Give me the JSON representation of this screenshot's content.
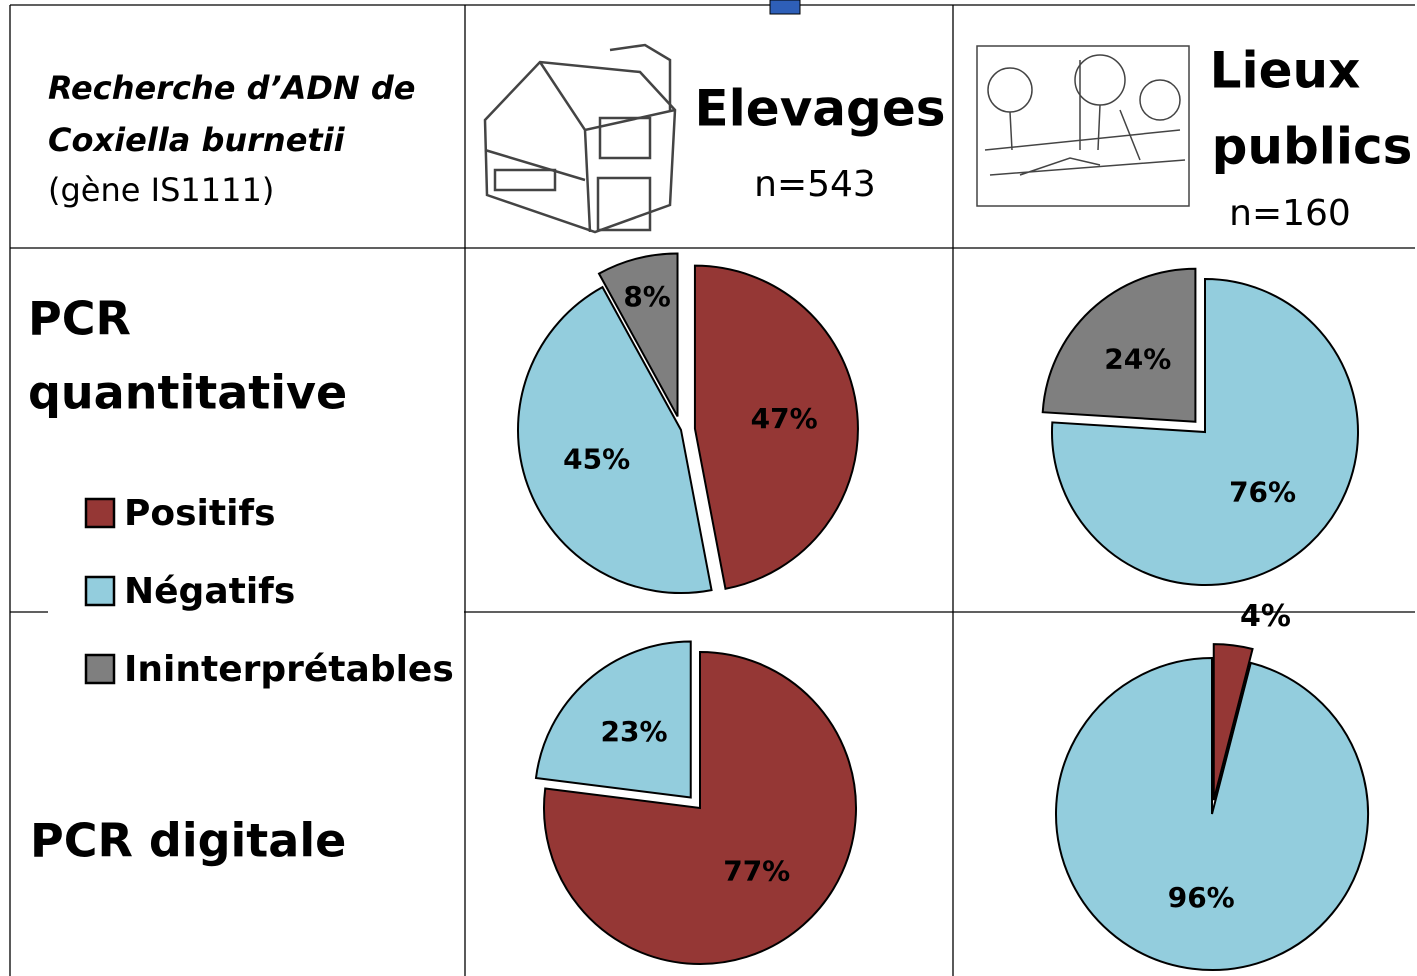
{
  "header": {
    "description": [
      "Recherche d’ADN de",
      "Coxiella burnetii",
      "(gène IS1111)"
    ],
    "columns": [
      {
        "title": [
          "Elevages"
        ],
        "n": "n=543"
      },
      {
        "title": [
          "Lieux",
          "publics"
        ],
        "n": "n=160"
      }
    ]
  },
  "rows": [
    {
      "label": [
        "PCR",
        "quantitative"
      ]
    },
    {
      "label": [
        "PCR digitale"
      ]
    }
  ],
  "legend": [
    {
      "label": "Positifs",
      "color": "#953735"
    },
    {
      "label": "Négatifs",
      "color": "#93cddd"
    },
    {
      "label": "Ininterprétables",
      "color": "#7f7f7f"
    }
  ],
  "chart_data": [
    {
      "type": "pie",
      "values": [
        47,
        45,
        8
      ],
      "value_labels": [
        "47%",
        "45%",
        "8%"
      ],
      "colors": [
        "#953735",
        "#93cddd",
        "#7f7f7f"
      ],
      "explode": [
        true,
        false,
        true
      ]
    },
    {
      "type": "pie",
      "values": [
        76,
        24
      ],
      "value_labels": [
        "76%",
        "24%"
      ],
      "colors": [
        "#93cddd",
        "#7f7f7f"
      ],
      "explode": [
        false,
        true
      ]
    },
    {
      "type": "pie",
      "values": [
        77,
        23
      ],
      "value_labels": [
        "77%",
        "23%"
      ],
      "colors": [
        "#953735",
        "#93cddd"
      ],
      "explode": [
        false,
        true
      ]
    },
    {
      "type": "pie",
      "values": [
        4,
        96
      ],
      "value_labels": [
        "4%",
        "96%"
      ],
      "colors": [
        "#953735",
        "#93cddd"
      ],
      "explode": [
        true,
        false
      ]
    }
  ]
}
